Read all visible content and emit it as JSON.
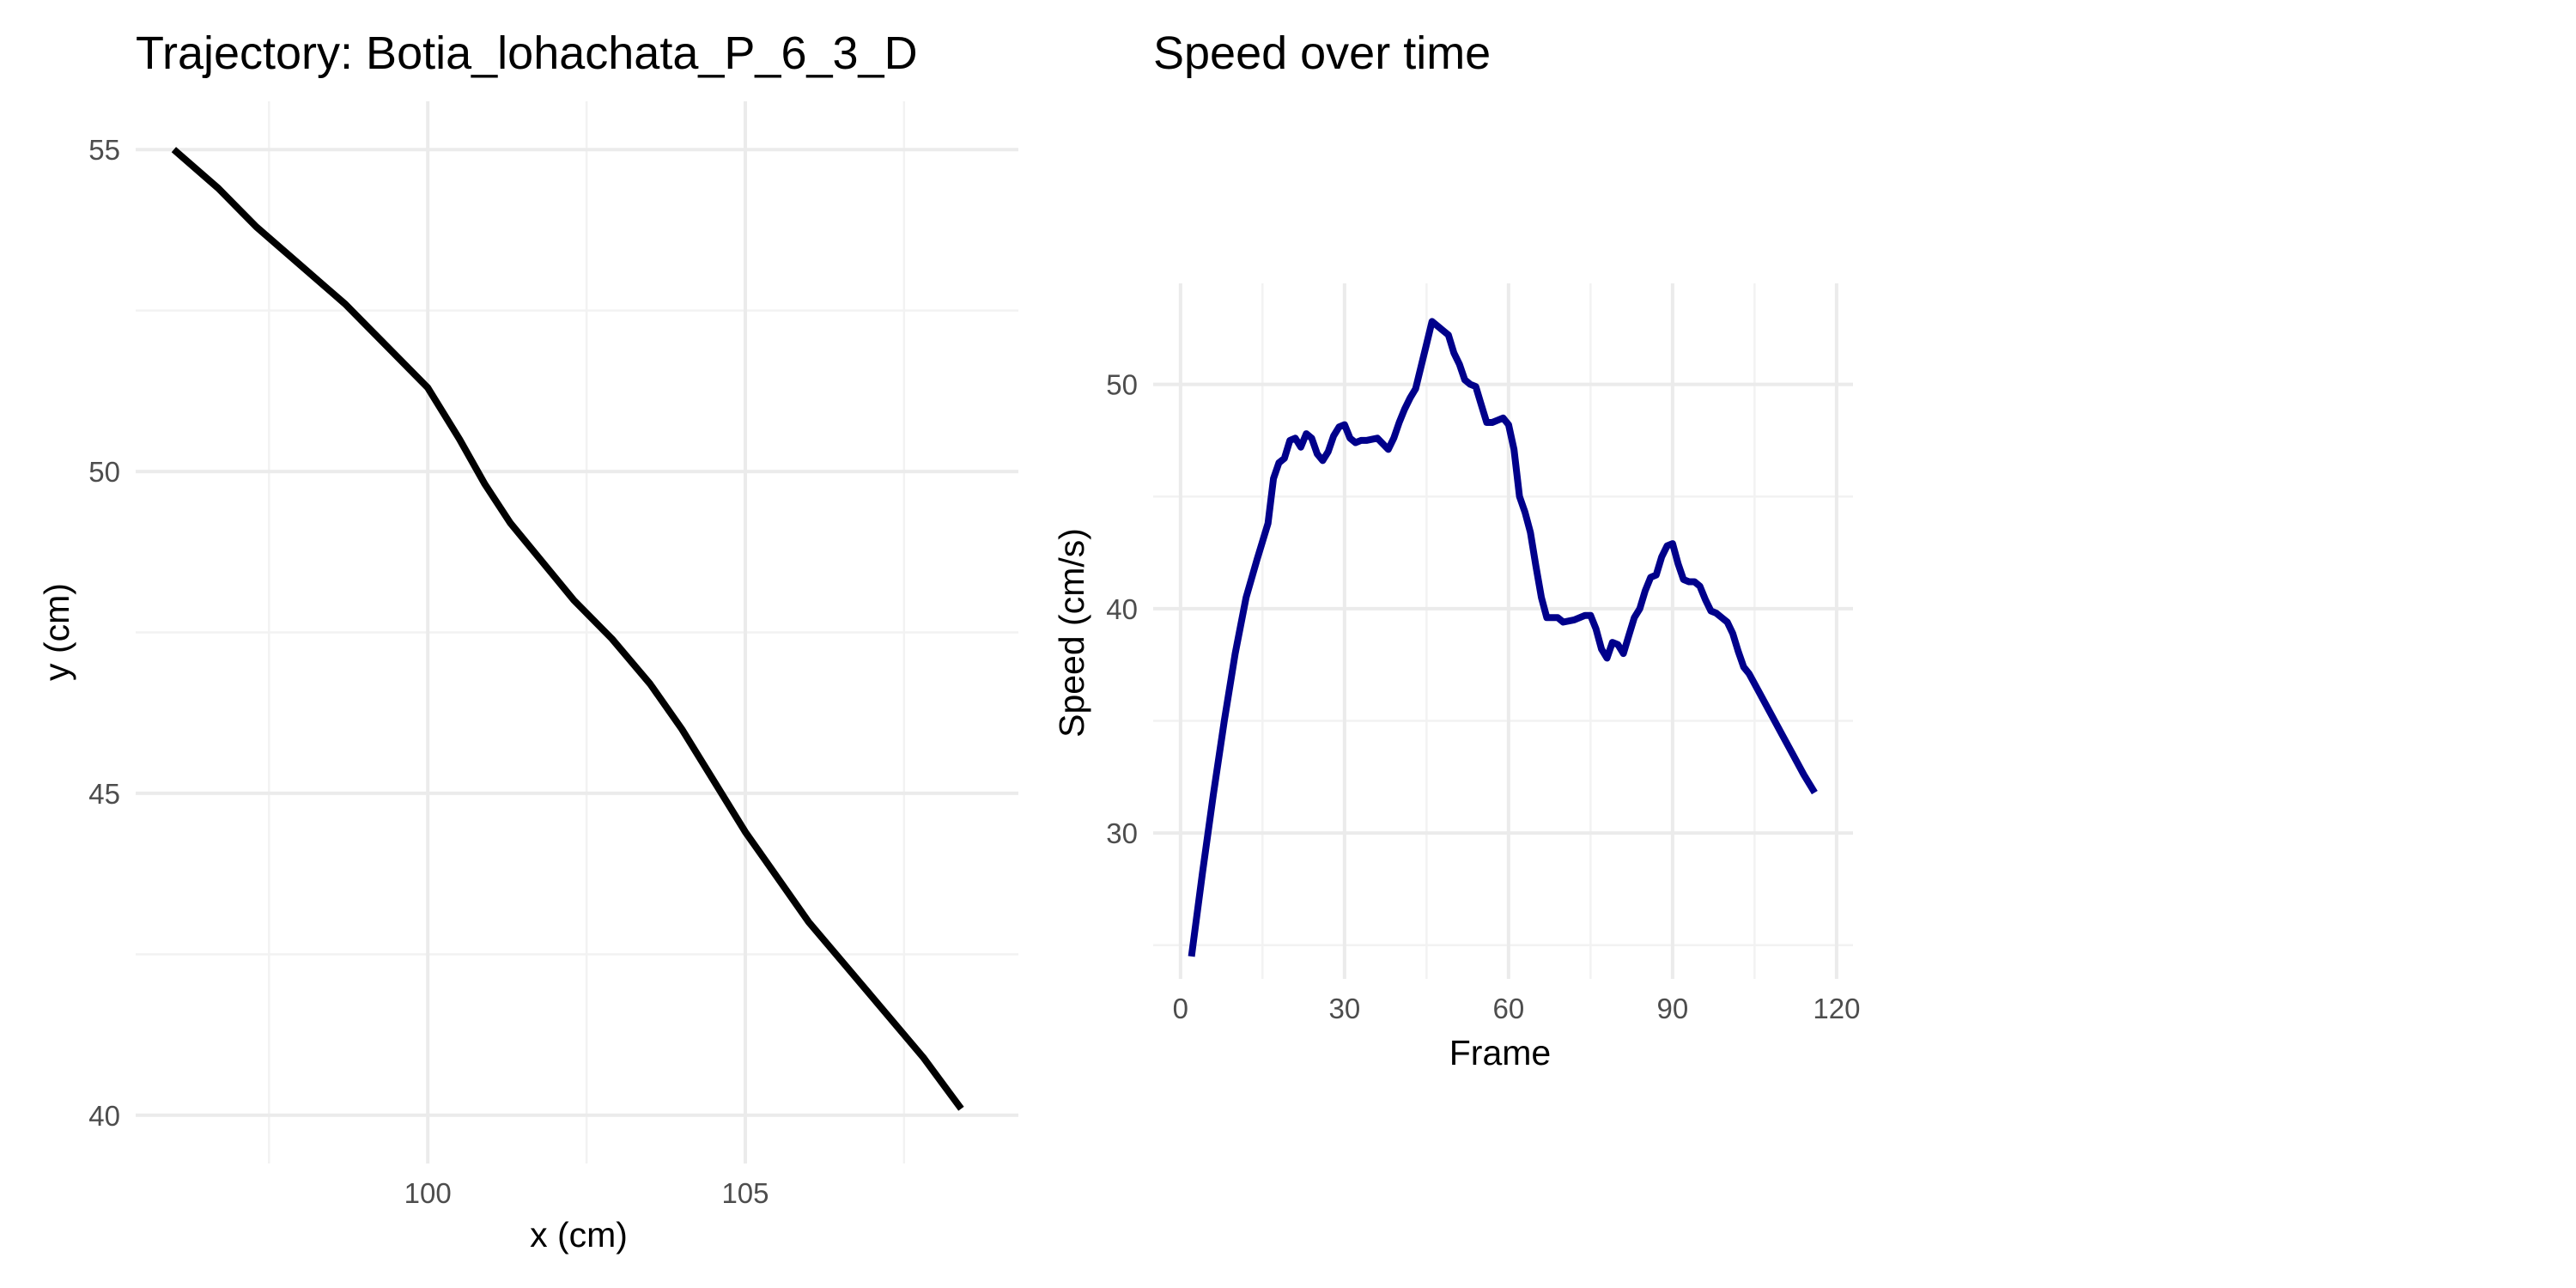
{
  "chart_data": [
    {
      "type": "line",
      "title": "Trajectory: Botia_lohachata_P_6_3_D",
      "xlabel": "x (cm)",
      "ylabel": "y (cm)",
      "xlim": [
        95.4,
        109.3
      ],
      "ylim": [
        39.25,
        55.75
      ],
      "x_ticks": [
        100,
        105
      ],
      "y_ticks": [
        40,
        45,
        50,
        55
      ],
      "grid": true,
      "line_color": "#000000",
      "series": [
        {
          "x": [
            96.0,
            96.7,
            97.3,
            98.0,
            98.7,
            99.3,
            100.0,
            100.5,
            100.9,
            101.3,
            101.8,
            102.3,
            102.9,
            103.5,
            104.0,
            104.5,
            105.0,
            105.5,
            106.0,
            106.6,
            107.2,
            107.8,
            108.4
          ],
          "y": [
            55.0,
            54.4,
            53.8,
            53.2,
            52.6,
            52.0,
            51.3,
            50.5,
            49.8,
            49.2,
            48.6,
            48.0,
            47.4,
            46.7,
            46.0,
            45.2,
            44.4,
            43.7,
            43.0,
            42.3,
            41.6,
            40.9,
            40.1
          ]
        }
      ]
    },
    {
      "type": "line",
      "title": "Speed over time",
      "xlabel": "Frame",
      "ylabel": "Speed (cm/s)",
      "xlim": [
        -5,
        123
      ],
      "ylim": [
        23.5,
        54.5
      ],
      "x_ticks": [
        0,
        30,
        60,
        90,
        120
      ],
      "y_ticks": [
        30,
        40,
        50
      ],
      "grid": true,
      "line_color": "#00008B",
      "series": [
        {
          "x": [
            2,
            4,
            6,
            8,
            10,
            12,
            14,
            16,
            17,
            18,
            19,
            20,
            21,
            22,
            23,
            24,
            25,
            26,
            27,
            28,
            29,
            30,
            31,
            32,
            33,
            34,
            36,
            38,
            39,
            40,
            41,
            42,
            43,
            44,
            45,
            46,
            47,
            48,
            49,
            50,
            51,
            52,
            53,
            54,
            55,
            56,
            57,
            58,
            59,
            60,
            61,
            62,
            63,
            64,
            65,
            66,
            67,
            68,
            69,
            70,
            72,
            74,
            75,
            76,
            77,
            78,
            79,
            80,
            81,
            82,
            83,
            84,
            85,
            86,
            87,
            88,
            89,
            90,
            91,
            92,
            93,
            94,
            95,
            96,
            97,
            98,
            99,
            100,
            101,
            102,
            103,
            104,
            106,
            108,
            110,
            112,
            114,
            116
          ],
          "y": [
            24.5,
            28.2,
            31.7,
            35.0,
            38.0,
            40.5,
            42.2,
            43.8,
            45.8,
            46.5,
            46.7,
            47.5,
            47.6,
            47.2,
            47.8,
            47.6,
            46.9,
            46.6,
            47.0,
            47.7,
            48.1,
            48.2,
            47.6,
            47.4,
            47.5,
            47.5,
            47.6,
            47.1,
            47.6,
            48.3,
            48.9,
            49.4,
            49.8,
            50.8,
            51.8,
            52.8,
            52.6,
            52.4,
            52.2,
            51.4,
            50.9,
            50.2,
            50.0,
            49.9,
            49.1,
            48.3,
            48.3,
            48.4,
            48.5,
            48.2,
            47.1,
            45.0,
            44.3,
            43.4,
            41.9,
            40.5,
            39.6,
            39.6,
            39.6,
            39.4,
            39.5,
            39.7,
            39.7,
            39.1,
            38.2,
            37.8,
            38.5,
            38.4,
            38.0,
            38.8,
            39.6,
            40.0,
            40.8,
            41.4,
            41.5,
            42.3,
            42.8,
            42.9,
            42.0,
            41.3,
            41.2,
            41.2,
            41.0,
            40.4,
            39.9,
            39.8,
            39.6,
            39.4,
            38.9,
            38.1,
            37.4,
            37.1,
            36.2,
            35.3,
            34.4,
            33.5,
            32.6,
            31.8
          ]
        }
      ]
    }
  ]
}
